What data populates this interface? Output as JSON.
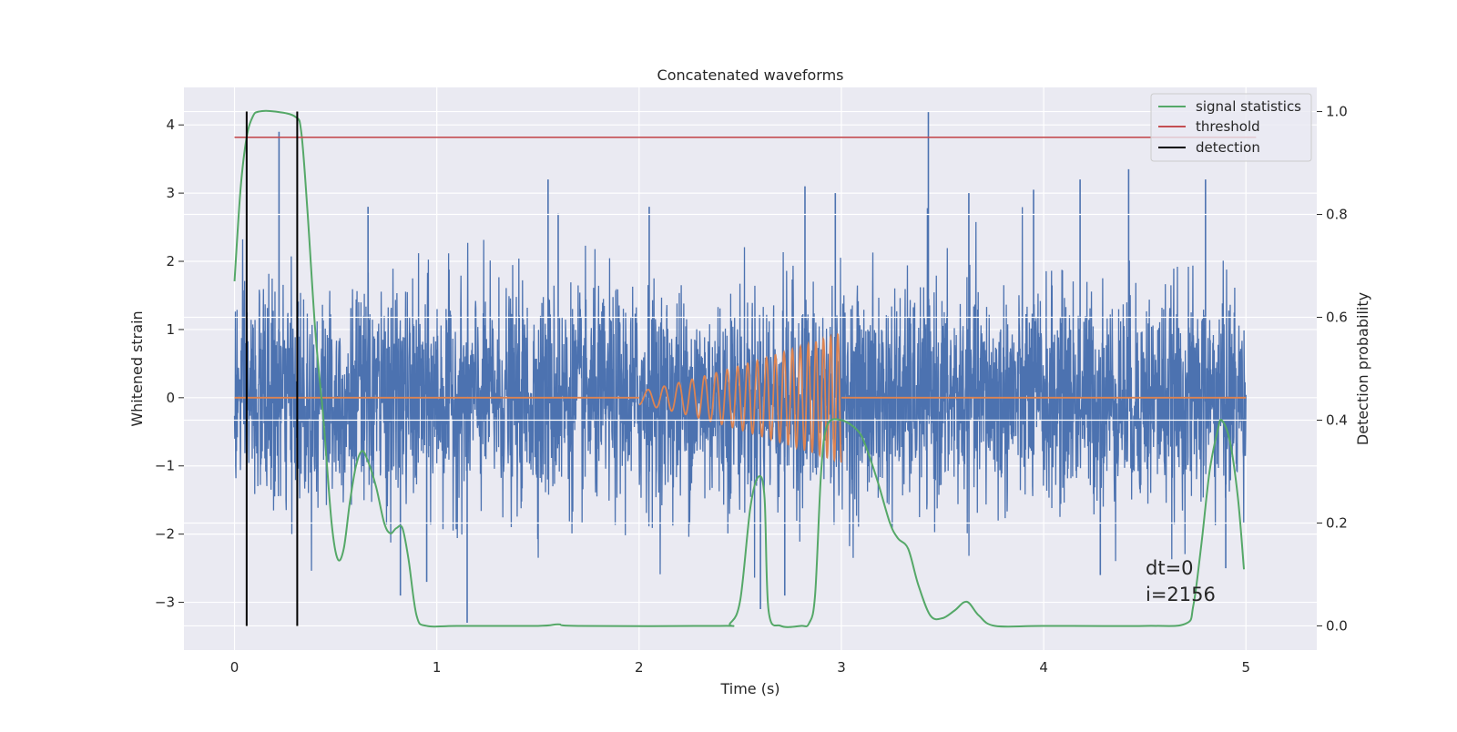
{
  "chart_data": {
    "type": "line",
    "title": "Concatenated waveforms",
    "xlabel": "Time (s)",
    "ylabel": "Whitened strain",
    "y2label": "Detection probability",
    "xlim": [
      -0.25,
      5.35
    ],
    "ylim": [
      -3.7,
      4.55
    ],
    "y2lim": [
      -0.047,
      1.047
    ],
    "xticks": [
      "0",
      "1",
      "2",
      "3",
      "4",
      "5"
    ],
    "yticks": [
      "−3",
      "−2",
      "−1",
      "0",
      "1",
      "2",
      "3",
      "4"
    ],
    "y2ticks": [
      "0.0",
      "0.2",
      "0.4",
      "0.6",
      "0.8",
      "1.0"
    ],
    "grid": true,
    "legend_position": "top-right",
    "legend": [
      {
        "label": "signal statistics",
        "color": "#55a868"
      },
      {
        "label": "threshold",
        "color": "#c44e52"
      },
      {
        "label": "detection",
        "color": "#000000"
      }
    ],
    "series": [
      {
        "color": "#4c72b0",
        "axis": "left",
        "kind": "noise",
        "x_range": [
          0,
          5
        ],
        "amplitude_range": [
          -3.3,
          4.2
        ],
        "spikes": [
          [
            0.22,
            3.9
          ],
          [
            0.66,
            2.8
          ],
          [
            1.55,
            3.2
          ],
          [
            1.6,
            2.7
          ],
          [
            2.05,
            2.8
          ],
          [
            2.82,
            3.1
          ],
          [
            2.97,
            3.0
          ],
          [
            3.43,
            4.2
          ],
          [
            3.63,
            3.0
          ],
          [
            3.95,
            3.05
          ],
          [
            4.18,
            3.2
          ],
          [
            4.42,
            3.35
          ],
          [
            4.8,
            3.2
          ],
          [
            1.15,
            -3.3
          ],
          [
            0.82,
            -2.9
          ],
          [
            0.95,
            -2.7
          ],
          [
            2.6,
            -3.1
          ],
          [
            2.72,
            -2.9
          ],
          [
            4.28,
            -2.6
          ],
          [
            4.9,
            -2.5
          ]
        ]
      },
      {
        "name": "signal statistics",
        "color": "#55a868",
        "axis": "right",
        "x": [
          0.0,
          0.03,
          0.06,
          0.09,
          0.12,
          0.2,
          0.3,
          0.33,
          0.36,
          0.4,
          0.44,
          0.48,
          0.51,
          0.54,
          0.57,
          0.6,
          0.63,
          0.66,
          0.7,
          0.74,
          0.77,
          0.8,
          0.83,
          0.86,
          0.9,
          0.95,
          1.1,
          1.5,
          1.6,
          1.7,
          2.4,
          2.45,
          2.5,
          2.55,
          2.59,
          2.62,
          2.64,
          2.7,
          2.8,
          2.84,
          2.87,
          2.9,
          2.93,
          3.0,
          3.08,
          3.12,
          3.18,
          3.24,
          3.28,
          3.33,
          3.38,
          3.44,
          3.5,
          3.56,
          3.62,
          3.68,
          3.76,
          4.0,
          4.5,
          4.7,
          4.74,
          4.78,
          4.82,
          4.86,
          4.88,
          4.92,
          4.96,
          4.99
        ],
        "y": [
          0.67,
          0.85,
          0.95,
          0.99,
          1.0,
          1.0,
          0.99,
          0.96,
          0.81,
          0.57,
          0.4,
          0.2,
          0.13,
          0.15,
          0.24,
          0.31,
          0.34,
          0.32,
          0.27,
          0.2,
          0.18,
          0.19,
          0.19,
          0.13,
          0.02,
          0.0,
          0.0,
          0.0,
          0.003,
          0.0,
          0.0,
          0.005,
          0.05,
          0.23,
          0.29,
          0.25,
          0.03,
          0.0,
          0.0,
          0.005,
          0.06,
          0.3,
          0.39,
          0.4,
          0.38,
          0.35,
          0.28,
          0.2,
          0.17,
          0.15,
          0.08,
          0.02,
          0.015,
          0.03,
          0.047,
          0.02,
          0.0,
          0.0,
          0.0,
          0.004,
          0.04,
          0.16,
          0.3,
          0.38,
          0.4,
          0.36,
          0.25,
          0.11
        ]
      },
      {
        "name": "threshold",
        "color": "#c44e52",
        "axis": "right",
        "x": [
          0,
          5.05
        ],
        "y": [
          0.95,
          0.95
        ]
      },
      {
        "color": "#dd8452",
        "axis": "left",
        "kind": "chirp",
        "x_range": [
          0,
          5
        ],
        "active_range": [
          2.0,
          3.0
        ],
        "amplitude_start": 0.1,
        "amplitude_end": 0.95,
        "cycles": 20
      },
      {
        "name": "detection",
        "color": "#000000",
        "axis": "right",
        "kind": "vlines",
        "x": [
          0.06,
          0.31
        ],
        "y_range": [
          0.0,
          1.0
        ]
      }
    ],
    "annotations": [
      "dt=0",
      "i=2156"
    ]
  }
}
